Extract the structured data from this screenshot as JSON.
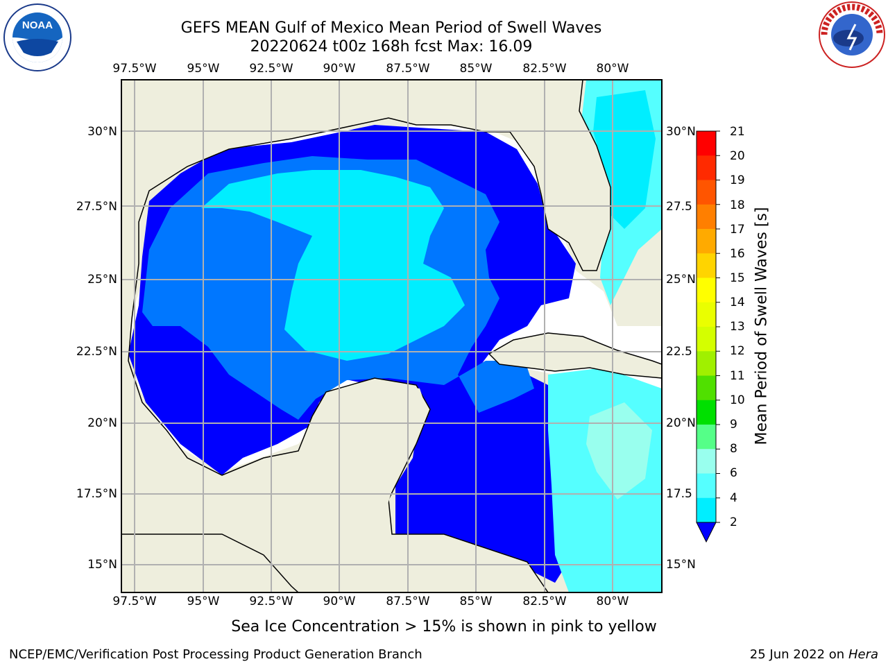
{
  "header": {
    "title_line1": "GEFS MEAN Gulf of Mexico Mean Period of Swell Waves",
    "title_line2": "20220624 t00z 168h fcst   Max: 16.09"
  },
  "map": {
    "lon_labels": [
      "97.5°W",
      "95°W",
      "92.5°W",
      "90°W",
      "87.5°W",
      "85°W",
      "82.5°W",
      "80°W"
    ],
    "lat_labels_left": [
      "30°N",
      "27.5°N",
      "25°N",
      "22.5°N",
      "20°N",
      "17.5°N",
      "15°N"
    ],
    "lat_labels_right": [
      "30°N",
      "27.5",
      "25°N",
      "22.5",
      "20°N",
      "17.5",
      "15°N"
    ],
    "land_color": "#eeeedd",
    "grid_color": "#b0b0b0"
  },
  "colorbar": {
    "title": "Mean Period of Swell Waves [s]",
    "tick_labels": [
      "21",
      "20",
      "19",
      "18",
      "17",
      "16",
      "15",
      "14",
      "13",
      "12",
      "11",
      "10",
      "9",
      "8",
      "6",
      "4",
      "2"
    ],
    "colors": [
      "#ff0000",
      "#ff2a00",
      "#ff5500",
      "#ff7f00",
      "#ffaa00",
      "#ffd400",
      "#ffff00",
      "#eaff00",
      "#d4ff00",
      "#a0f000",
      "#50e000",
      "#00e000",
      "#55ff88",
      "#99ffee",
      "#55ffff",
      "#00eeff",
      "#0077ff"
    ],
    "extend_color": "#0000ff"
  },
  "logos": {
    "left": "noaa-logo",
    "right": "national-weather-service-logo"
  },
  "footer": {
    "ice_note": "Sea Ice Concentration > 15% is shown in pink to yellow",
    "left": "NCEP/EMC/Verification Post Processing Product Generation Branch",
    "right_date": "25 Jun 2022 on",
    "right_machine": "Hera"
  }
}
